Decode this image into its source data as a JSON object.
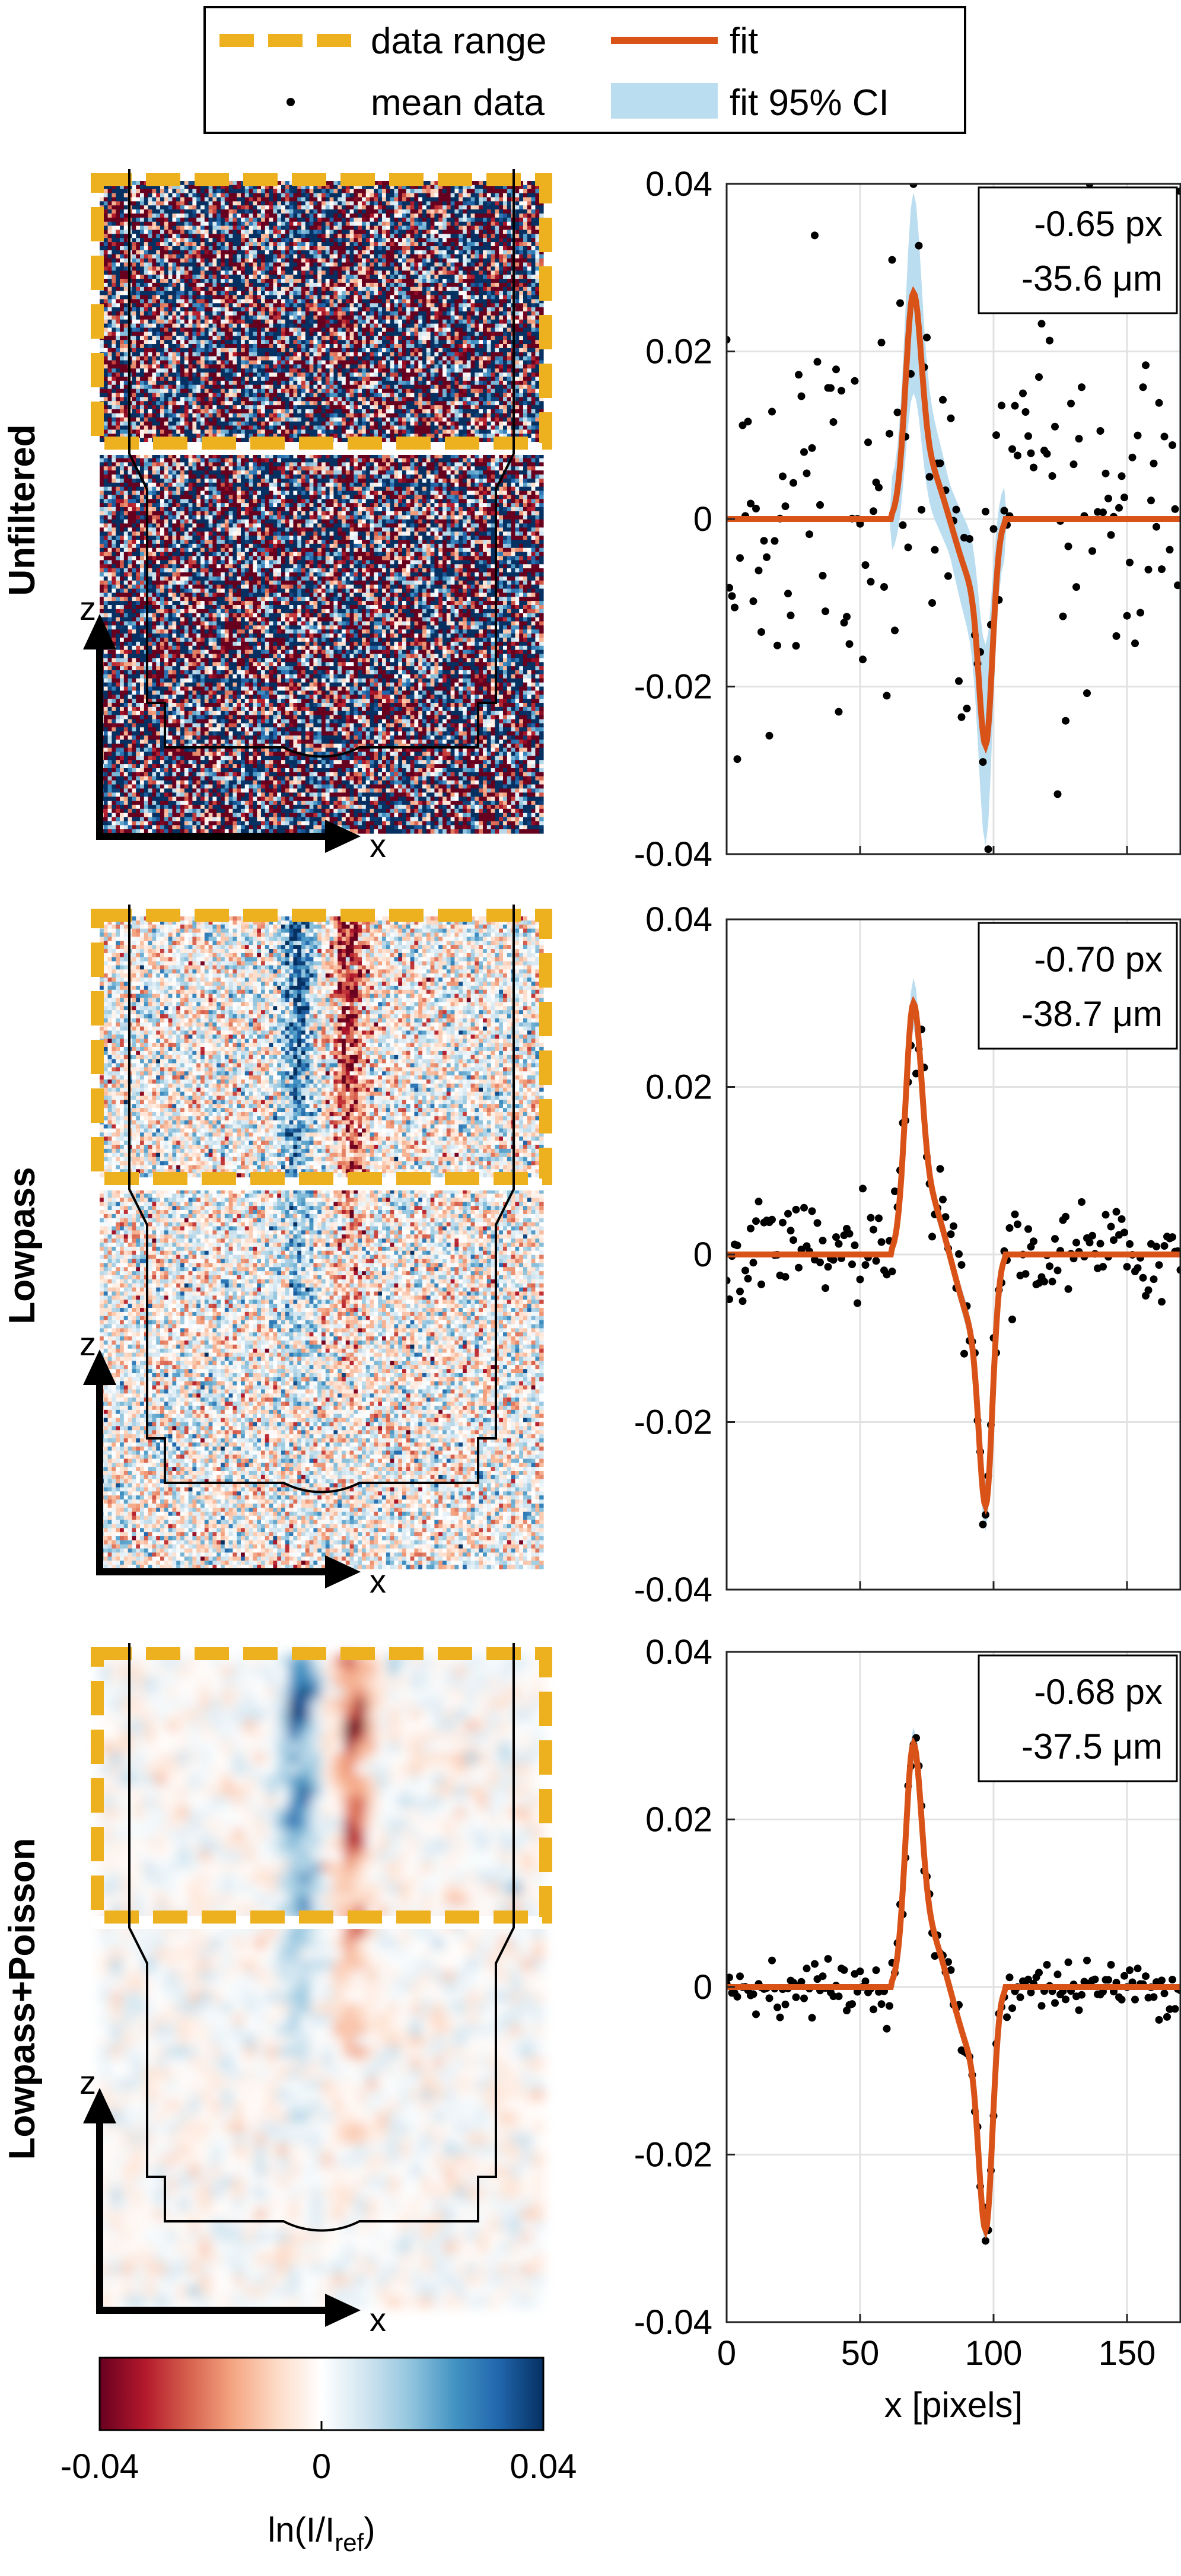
{
  "legend": {
    "entries": [
      {
        "label": "data range",
        "kind": "dashed-line",
        "color": "#EDB120"
      },
      {
        "label": "fit",
        "kind": "line",
        "color": "#D95319"
      },
      {
        "label": "mean data",
        "kind": "marker",
        "color": "#000000"
      },
      {
        "label": "fit 95% CI",
        "kind": "band",
        "color": "#BBDDF0"
      }
    ]
  },
  "rows": [
    {
      "label": "Unfiltered",
      "annotation": [
        "-0.65 px",
        "-35.6 μm"
      ],
      "image_style": "noise",
      "image_icon": "noisy-heatmap"
    },
    {
      "label": "Lowpass",
      "annotation": [
        "-0.70 px",
        "-38.7 μm"
      ],
      "image_style": "lowpass",
      "image_icon": "lowpass-heatmap"
    },
    {
      "label": "Lowpass+Poisson",
      "annotation": [
        "-0.68 px",
        "-37.5 μm"
      ],
      "image_style": "smooth",
      "image_icon": "smooth-heatmap"
    }
  ],
  "axis_icons": {
    "z": "z",
    "x": "x"
  },
  "colorbar": {
    "label_main": "ln(I/I",
    "label_sub": "ref",
    "label_close": ")",
    "ticks": [
      "-0.04",
      "0",
      "0.04"
    ],
    "colormap": [
      "#67001F",
      "#B2182B",
      "#D6604D",
      "#F4A582",
      "#FDDBC7",
      "#FFFFFF",
      "#D1E5F0",
      "#92C5DE",
      "#4393C3",
      "#2166AC",
      "#053061"
    ]
  },
  "chart_data": [
    {
      "type": "line",
      "panel": "Unfiltered",
      "xlim": [
        0,
        170
      ],
      "ylim": [
        -0.04,
        0.04
      ],
      "yticks": [
        "-0.04",
        "-0.02",
        "0",
        "0.02",
        "0.04"
      ],
      "xticks": [
        "0",
        "50",
        "100",
        "150"
      ],
      "xlabel": "",
      "grid": true,
      "fit_peak": [
        70,
        0.027
      ],
      "fit_trough": [
        97,
        -0.027
      ],
      "ci_halfwidth_max": 0.012,
      "scatter_spread": 0.014,
      "annotation": [
        "-0.65 px",
        "-35.6 μm"
      ]
    },
    {
      "type": "line",
      "panel": "Lowpass",
      "xlim": [
        0,
        170
      ],
      "ylim": [
        -0.04,
        0.04
      ],
      "yticks": [
        "-0.04",
        "-0.02",
        "0",
        "0.02",
        "0.04"
      ],
      "xticks": [
        "0",
        "50",
        "100",
        "150"
      ],
      "xlabel": "",
      "grid": true,
      "fit_peak": [
        70,
        0.03
      ],
      "fit_trough": [
        97,
        -0.03
      ],
      "ci_halfwidth_max": 0.003,
      "scatter_spread": 0.003,
      "annotation": [
        "-0.70 px",
        "-38.7 μm"
      ]
    },
    {
      "type": "line",
      "panel": "Lowpass+Poisson",
      "xlim": [
        0,
        170
      ],
      "ylim": [
        -0.04,
        0.04
      ],
      "yticks": [
        "-0.04",
        "-0.02",
        "0",
        "0.02",
        "0.04"
      ],
      "xticks": [
        "0",
        "50",
        "100",
        "150"
      ],
      "xlabel": "x [pixels]",
      "grid": true,
      "fit_peak": [
        70,
        0.029
      ],
      "fit_trough": [
        97,
        -0.029
      ],
      "ci_halfwidth_max": 0.002,
      "scatter_spread": 0.0015,
      "annotation": [
        "-0.68 px",
        "-37.5 μm"
      ]
    }
  ]
}
